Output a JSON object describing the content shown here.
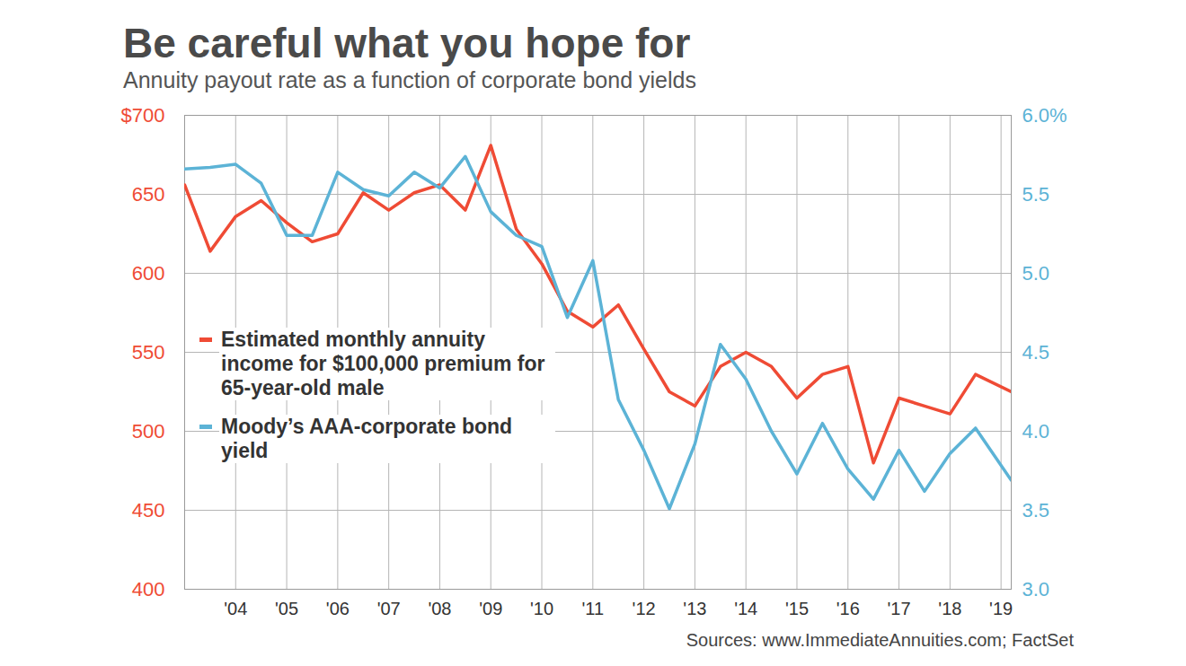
{
  "chart_data": {
    "type": "line",
    "title": "Be careful what you hope for",
    "subtitle": "Annuity payout rate as a function of corporate bond yields",
    "source": "Sources: www.ImmediateAnnuities.com; FactSet",
    "x": [
      2003,
      2003.5,
      2004,
      2004.5,
      2005,
      2005.5,
      2006,
      2006.5,
      2007,
      2007.5,
      2008,
      2008.5,
      2009,
      2009.5,
      2010,
      2010.5,
      2011,
      2011.5,
      2012,
      2012.5,
      2013,
      2013.5,
      2014,
      2014.5,
      2015,
      2015.5,
      2016,
      2016.5,
      2017,
      2017.5,
      2018,
      2018.5,
      2019.2
    ],
    "xlim": [
      2003,
      2019.2
    ],
    "xticks": [
      {
        "value": 2004,
        "label": "'04"
      },
      {
        "value": 2005,
        "label": "'05"
      },
      {
        "value": 2006,
        "label": "'06"
      },
      {
        "value": 2007,
        "label": "'07"
      },
      {
        "value": 2008,
        "label": "'08"
      },
      {
        "value": 2009,
        "label": "'09"
      },
      {
        "value": 2010,
        "label": "'10"
      },
      {
        "value": 2011,
        "label": "'11"
      },
      {
        "value": 2012,
        "label": "'12"
      },
      {
        "value": 2013,
        "label": "'13"
      },
      {
        "value": 2014,
        "label": "'14"
      },
      {
        "value": 2015,
        "label": "'15"
      },
      {
        "value": 2016,
        "label": "'16"
      },
      {
        "value": 2017,
        "label": "'17"
      },
      {
        "value": 2018,
        "label": "'18"
      },
      {
        "value": 2019,
        "label": "'19"
      }
    ],
    "ylim": [
      400,
      700
    ],
    "yticks": [
      400,
      450,
      500,
      550,
      600,
      650,
      {
        "value": 700,
        "label": "$700"
      }
    ],
    "y2lim": [
      3.0,
      6.0
    ],
    "y2ticks": [
      {
        "value": 3.0,
        "label": "3.0"
      },
      {
        "value": 3.5,
        "label": "3.5"
      },
      {
        "value": 4.0,
        "label": "4.0"
      },
      {
        "value": 4.5,
        "label": "4.5"
      },
      {
        "value": 5.0,
        "label": "5.0"
      },
      {
        "value": 5.5,
        "label": "5.5"
      },
      {
        "value": 6.0,
        "label": "6.0%"
      }
    ],
    "grid": true,
    "legend": "left",
    "series": [
      {
        "name": "Estimated monthly annuity income for $100,000 premium for 65-year-old male",
        "color": "#ef4b35",
        "axis": "y",
        "values": [
          656,
          614,
          636,
          646,
          632,
          620,
          625,
          651,
          640,
          651,
          656,
          640,
          681,
          628,
          606,
          576,
          566,
          580,
          552,
          525,
          516,
          541,
          550,
          541,
          521,
          536,
          541,
          480,
          521,
          516,
          511,
          536,
          525
        ]
      },
      {
        "name": "Moody’s AAA-corporate bond yield",
        "color": "#5cb3d6",
        "axis": "y2",
        "values": [
          5.66,
          5.67,
          5.69,
          5.57,
          5.24,
          5.24,
          5.64,
          5.53,
          5.49,
          5.64,
          5.54,
          5.74,
          5.39,
          5.24,
          5.17,
          4.72,
          5.08,
          4.2,
          3.88,
          3.51,
          3.92,
          4.55,
          4.33,
          4.0,
          3.73,
          4.05,
          3.76,
          3.57,
          3.88,
          3.62,
          3.86,
          4.02,
          3.69
        ]
      }
    ]
  }
}
